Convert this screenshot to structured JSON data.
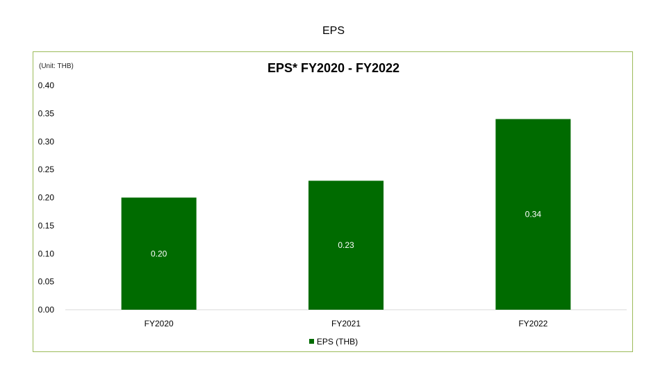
{
  "slide": {
    "title": "EPS"
  },
  "chart_data": {
    "type": "bar",
    "title": "EPS* FY2020 - FY2022",
    "unit_note": "(Unit: THB)",
    "categories": [
      "FY2020",
      "FY2021",
      "FY2022"
    ],
    "series": [
      {
        "name": "EPS (THB)",
        "values": [
          0.2,
          0.23,
          0.34
        ],
        "labels": [
          "0.20",
          "0.23",
          "0.34"
        ]
      }
    ],
    "ylim": [
      0,
      0.4
    ],
    "yticks": [
      "0.00",
      "0.05",
      "0.10",
      "0.15",
      "0.20",
      "0.25",
      "0.30",
      "0.35",
      "0.40"
    ],
    "grid": false,
    "legend_position": "bottom",
    "colors": {
      "bar": "#006b00",
      "frame": "#9bbb59",
      "axis": "#d9d9d9",
      "data_label": "#ffffff"
    }
  }
}
